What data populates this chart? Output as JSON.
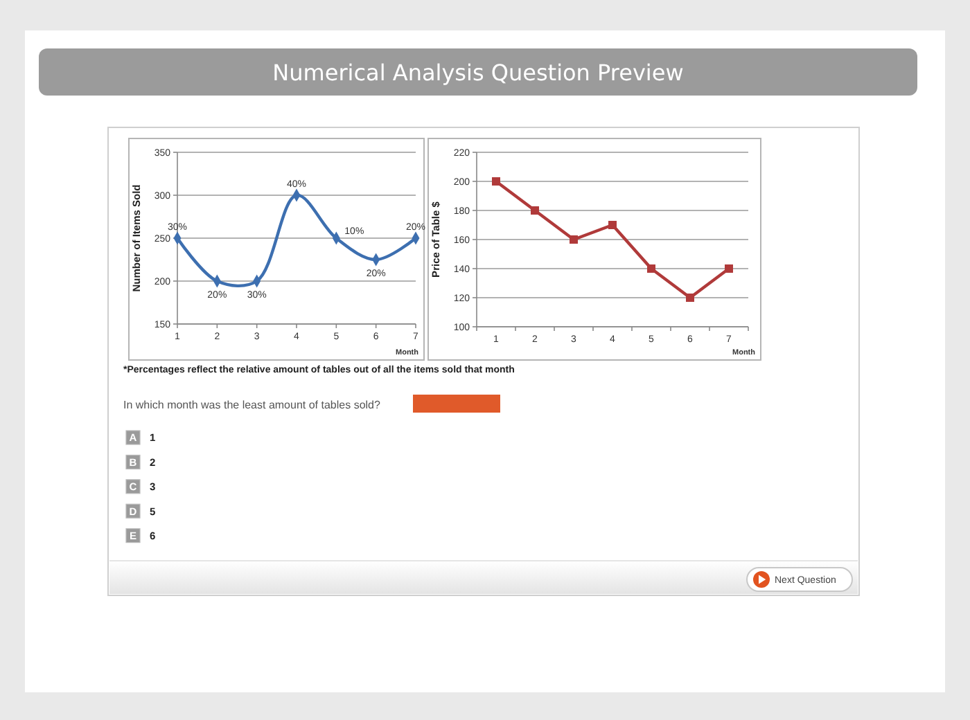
{
  "chart_data": [
    {
      "type": "line",
      "title": "Numerical Analysis Question Preview",
      "x": [
        1,
        2,
        3,
        4,
        5,
        6,
        7
      ],
      "values": [
        250,
        200,
        200,
        300,
        250,
        225,
        250
      ],
      "color": "#3d6fb0",
      "marker": "diamond",
      "line_style": "solid",
      "xlabel": "Month",
      "ylabel": "Number of Items Sold",
      "xlim": [
        1,
        7
      ],
      "xticks": [
        1,
        2,
        3,
        4,
        5,
        6,
        7
      ],
      "ylim": [
        150,
        350
      ],
      "yticks": [
        150,
        200,
        250,
        300,
        350
      ],
      "grid": "y",
      "annotations": [
        {
          "text": "30%",
          "x": 1,
          "y": 250
        },
        {
          "text": "20%",
          "x": 2,
          "y": 200
        },
        {
          "text": "30%",
          "x": 3,
          "y": 200
        },
        {
          "text": "40%",
          "x": 4,
          "y": 300
        },
        {
          "text": "10%",
          "x": 5,
          "y": 250
        },
        {
          "text": "20%",
          "x": 6,
          "y": 225
        },
        {
          "text": "20%",
          "x": 7,
          "y": 250
        },
        "*Percentages reflect the relative amount of tables out of all the items sold that month",
        "In which month was the least amount of tables sold?",
        "A",
        "1",
        "B",
        "2",
        "C",
        "3",
        "D",
        "5",
        "E",
        "6",
        "Next Question"
      ]
    },
    {
      "type": "line",
      "categories": [
        "1",
        "2",
        "3",
        "4",
        "5",
        "6",
        "7"
      ],
      "values": [
        200,
        180,
        160,
        170,
        140,
        120,
        140
      ],
      "color": "#b03a3a",
      "marker": "square",
      "line_style": "solid",
      "xlabel": "Month",
      "ylabel": "Price of Table $",
      "ylim": [
        100,
        220
      ],
      "yticks": [
        100,
        120,
        140,
        160,
        180,
        200,
        220
      ],
      "grid": "y"
    }
  ]
}
